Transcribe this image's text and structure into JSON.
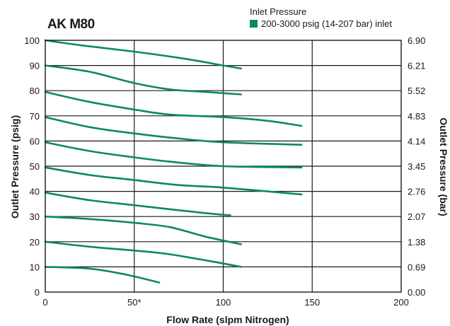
{
  "chart_data": {
    "type": "line",
    "title": "AK M80",
    "legend": {
      "title": "Inlet Pressure",
      "entries": [
        {
          "label": "200-3000 psig (14-207 bar) inlet",
          "color": "#0a8a5a"
        }
      ],
      "placement": "top-right"
    },
    "xlabel": "Flow Rate (slpm Nitrogen)",
    "ylabel": "Outlet Pressure (psig)",
    "y2label": "Outlet Pressure (bar)",
    "xlim": [
      0,
      200
    ],
    "ylim": [
      0,
      100
    ],
    "x_ticks": [
      {
        "value": 0,
        "label": "0"
      },
      {
        "value": 50,
        "label": "50*"
      },
      {
        "value": 100,
        "label": "100"
      },
      {
        "value": 150,
        "label": "150"
      },
      {
        "value": 200,
        "label": "200"
      }
    ],
    "y_ticks": [
      0,
      10,
      20,
      30,
      40,
      50,
      60,
      70,
      80,
      90,
      100
    ],
    "y2_ticks": [
      "0.00",
      "0.69",
      "1.38",
      "2.07",
      "2.76",
      "3.45",
      "4.14",
      "4.83",
      "5.52",
      "6.21",
      "6.90"
    ],
    "grid": "major",
    "line_color": "#0a8a5a",
    "series": [
      {
        "points": [
          [
            0,
            100
          ],
          [
            20,
            98
          ],
          [
            50,
            95.5
          ],
          [
            80,
            92.5
          ],
          [
            100,
            90
          ],
          [
            110,
            88.8
          ]
        ]
      },
      {
        "points": [
          [
            0,
            90
          ],
          [
            25,
            87.5
          ],
          [
            50,
            83
          ],
          [
            70,
            80.5
          ],
          [
            90,
            79.5
          ],
          [
            110,
            78.5
          ]
        ]
      },
      {
        "points": [
          [
            0,
            79.5
          ],
          [
            25,
            75.5
          ],
          [
            50,
            72.5
          ],
          [
            70,
            70.5
          ],
          [
            100,
            69.5
          ],
          [
            125,
            68
          ],
          [
            144,
            66
          ]
        ]
      },
      {
        "points": [
          [
            0,
            69.5
          ],
          [
            25,
            65.5
          ],
          [
            50,
            63
          ],
          [
            75,
            61
          ],
          [
            100,
            59.5
          ],
          [
            144,
            58.5
          ]
        ]
      },
      {
        "points": [
          [
            0,
            59.5
          ],
          [
            25,
            56
          ],
          [
            50,
            53.5
          ],
          [
            70,
            51.8
          ],
          [
            100,
            50
          ],
          [
            144,
            49.5
          ]
        ]
      },
      {
        "points": [
          [
            0,
            49.5
          ],
          [
            25,
            46.5
          ],
          [
            50,
            44.5
          ],
          [
            75,
            42.5
          ],
          [
            100,
            41.5
          ],
          [
            144,
            38.8
          ]
        ]
      },
      {
        "points": [
          [
            0,
            39.5
          ],
          [
            25,
            36.5
          ],
          [
            50,
            34.5
          ],
          [
            75,
            32.5
          ],
          [
            95,
            31
          ],
          [
            104,
            30.5
          ]
        ]
      },
      {
        "points": [
          [
            0,
            30
          ],
          [
            25,
            29
          ],
          [
            50,
            27.5
          ],
          [
            70,
            25.8
          ],
          [
            90,
            22
          ],
          [
            110,
            19
          ]
        ]
      },
      {
        "points": [
          [
            0,
            20
          ],
          [
            25,
            18
          ],
          [
            50,
            16.5
          ],
          [
            70,
            15
          ],
          [
            95,
            12
          ],
          [
            110,
            10
          ]
        ]
      },
      {
        "points": [
          [
            0,
            10
          ],
          [
            25,
            9.3
          ],
          [
            45,
            7
          ],
          [
            64,
            3.8
          ]
        ]
      }
    ]
  }
}
